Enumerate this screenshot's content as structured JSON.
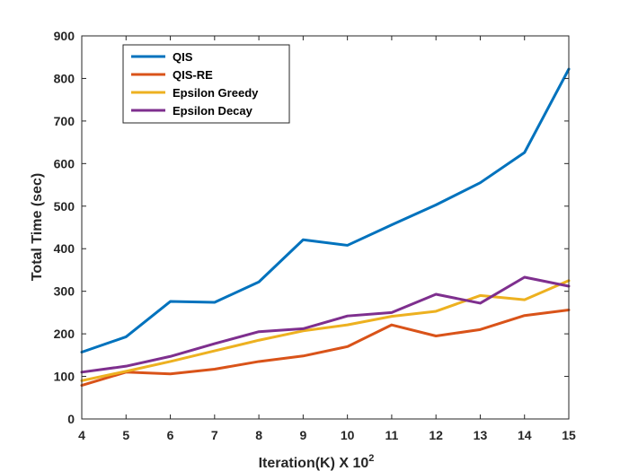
{
  "chart_data": {
    "type": "line",
    "title": "",
    "xlabel": "Iteration(K) X 10",
    "xlabel_superscript": "2",
    "ylabel": "Total Time (sec)",
    "x": [
      4,
      5,
      6,
      7,
      8,
      9,
      10,
      11,
      12,
      13,
      14,
      15
    ],
    "xlim": [
      4,
      15
    ],
    "ylim": [
      0,
      900
    ],
    "xticks": [
      "4",
      "5",
      "6",
      "7",
      "8",
      "9",
      "10",
      "11",
      "12",
      "13",
      "14",
      "15"
    ],
    "yticks": [
      "0",
      "100",
      "200",
      "300",
      "400",
      "500",
      "600",
      "700",
      "800",
      "900"
    ],
    "grid": false,
    "legend_position": "top-left",
    "series": [
      {
        "name": "QIS",
        "color": "#0072BD",
        "values": [
          157,
          193,
          276,
          274,
          322,
          421,
          408,
          456,
          503,
          555,
          626,
          822
        ]
      },
      {
        "name": "QIS-RE",
        "color": "#D95319",
        "values": [
          79,
          110,
          106,
          117,
          135,
          148,
          170,
          221,
          195,
          210,
          243,
          256
        ]
      },
      {
        "name": "Epsilon Greedy",
        "color": "#EDB120",
        "values": [
          90,
          112,
          135,
          160,
          185,
          207,
          221,
          241,
          253,
          290,
          280,
          325
        ]
      },
      {
        "name": "Epsilon Decay",
        "color": "#7E2F8E",
        "values": [
          110,
          124,
          147,
          177,
          205,
          212,
          242,
          250,
          293,
          272,
          333,
          312
        ]
      }
    ]
  }
}
